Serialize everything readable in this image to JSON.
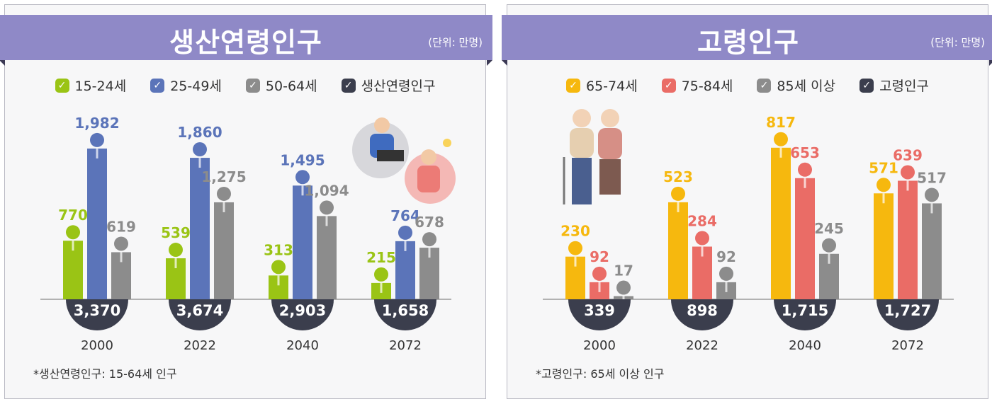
{
  "colors": {
    "banner": "#8f89c7",
    "base_dark": "#3b3e4d",
    "green": "#9ac415",
    "blue": "#5b74b9",
    "gray": "#8c8c8c",
    "yellow": "#f6b80e",
    "red": "#ea6c66"
  },
  "chart_data": [
    {
      "type": "bar",
      "title": "생산연령인구",
      "unit_label": "(단위: 만명)",
      "categories": [
        "2000",
        "2022",
        "2040",
        "2072"
      ],
      "series": [
        {
          "name": "15-24세",
          "color": "#9ac415",
          "values": [
            770,
            539,
            313,
            215
          ]
        },
        {
          "name": "25-49세",
          "color": "#5b74b9",
          "values": [
            1982,
            1860,
            1495,
            764
          ]
        },
        {
          "name": "50-64세",
          "color": "#8c8c8c",
          "values": [
            619,
            1275,
            1094,
            678
          ]
        }
      ],
      "total_series": {
        "name": "생산연령인구",
        "color": "#3b3e4d",
        "values": [
          3370,
          3674,
          2903,
          1658
        ]
      },
      "labels": [
        "770",
        "1,982",
        "619",
        "539",
        "1,860",
        "1,275",
        "313",
        "1,495",
        "1,094",
        "215",
        "764",
        "678"
      ],
      "total_labels": [
        "3,370",
        "3,674",
        "2,903",
        "1,658"
      ],
      "ylim": [
        0,
        2000
      ],
      "legend": "top",
      "footnote": "*생산연령인구: 15-64세 인구"
    },
    {
      "type": "bar",
      "title": "고령인구",
      "unit_label": "(단위: 만명)",
      "categories": [
        "2000",
        "2022",
        "2040",
        "2072"
      ],
      "series": [
        {
          "name": "65-74세",
          "color": "#f6b80e",
          "values": [
            230,
            523,
            817,
            571
          ]
        },
        {
          "name": "75-84세",
          "color": "#ea6c66",
          "values": [
            92,
            284,
            653,
            639
          ]
        },
        {
          "name": "85세 이상",
          "color": "#8c8c8c",
          "values": [
            17,
            92,
            245,
            517
          ]
        }
      ],
      "total_series": {
        "name": "고령인구",
        "color": "#3b3e4d",
        "values": [
          339,
          898,
          1715,
          1727
        ]
      },
      "labels": [
        "230",
        "92",
        "17",
        "523",
        "284",
        "92",
        "817",
        "653",
        "245",
        "571",
        "639",
        "517"
      ],
      "total_labels": [
        "339",
        "898",
        "1,715",
        "1,727"
      ],
      "ylim": [
        0,
        820
      ],
      "legend": "top",
      "footnote": "*고령인구: 65세 이상 인구"
    }
  ]
}
